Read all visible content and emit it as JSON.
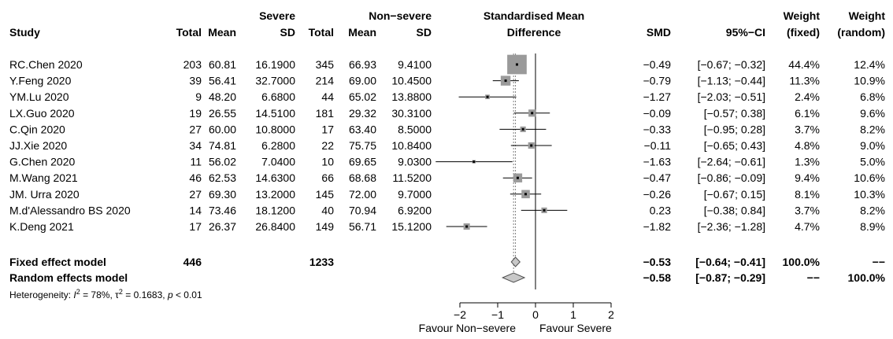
{
  "chart_data": {
    "type": "forest",
    "headers": {
      "study": "Study",
      "severe_group": "Severe",
      "nonsevere_group": "Non−severe",
      "total": "Total",
      "mean": "Mean",
      "sd": "SD",
      "plot_line1": "Standardised Mean",
      "plot_line2": "Difference",
      "smd": "SMD",
      "ci": "95%−CI",
      "weight_fixed_line1": "Weight",
      "weight_fixed_line2": "(fixed)",
      "weight_random_line1": "Weight",
      "weight_random_line2": "(random)"
    },
    "studies": [
      {
        "study": "RC.Chen 2020",
        "s_total": "203",
        "s_mean": "60.81",
        "s_sd": "16.1900",
        "n_total": "345",
        "n_mean": "66.93",
        "n_sd": "9.4100",
        "smd": "−0.49",
        "ci": "[−0.67; −0.32]",
        "w_fixed": "44.4%",
        "w_random": "12.4%",
        "est": -0.49,
        "lo": -0.67,
        "hi": -0.32,
        "wf": 44.4
      },
      {
        "study": "Y.Feng 2020",
        "s_total": "39",
        "s_mean": "56.41",
        "s_sd": "32.7000",
        "n_total": "214",
        "n_mean": "69.00",
        "n_sd": "10.4500",
        "smd": "−0.79",
        "ci": "[−1.13; −0.44]",
        "w_fixed": "11.3%",
        "w_random": "10.9%",
        "est": -0.79,
        "lo": -1.13,
        "hi": -0.44,
        "wf": 11.3
      },
      {
        "study": "YM.Lu 2020",
        "s_total": "9",
        "s_mean": "48.20",
        "s_sd": "6.6800",
        "n_total": "44",
        "n_mean": "65.02",
        "n_sd": "13.8800",
        "smd": "−1.27",
        "ci": "[−2.03; −0.51]",
        "w_fixed": "2.4%",
        "w_random": "6.8%",
        "est": -1.27,
        "lo": -2.03,
        "hi": -0.51,
        "wf": 2.4
      },
      {
        "study": "LX.Guo 2020",
        "s_total": "19",
        "s_mean": "26.55",
        "s_sd": "14.5100",
        "n_total": "181",
        "n_mean": "29.32",
        "n_sd": "30.3100",
        "smd": "−0.09",
        "ci": "[−0.57; 0.38]",
        "w_fixed": "6.1%",
        "w_random": "9.6%",
        "est": -0.09,
        "lo": -0.57,
        "hi": 0.38,
        "wf": 6.1
      },
      {
        "study": "C.Qin 2020",
        "s_total": "27",
        "s_mean": "60.00",
        "s_sd": "10.8000",
        "n_total": "17",
        "n_mean": "63.40",
        "n_sd": "8.5000",
        "smd": "−0.33",
        "ci": "[−0.95; 0.28]",
        "w_fixed": "3.7%",
        "w_random": "8.2%",
        "est": -0.33,
        "lo": -0.95,
        "hi": 0.28,
        "wf": 3.7
      },
      {
        "study": "JJ.Xie 2020",
        "s_total": "34",
        "s_mean": "74.81",
        "s_sd": "6.2800",
        "n_total": "22",
        "n_mean": "75.75",
        "n_sd": "10.8400",
        "smd": "−0.11",
        "ci": "[−0.65; 0.43]",
        "w_fixed": "4.8%",
        "w_random": "9.0%",
        "est": -0.11,
        "lo": -0.65,
        "hi": 0.43,
        "wf": 4.8
      },
      {
        "study": "G.Chen 2020",
        "s_total": "11",
        "s_mean": "56.02",
        "s_sd": "7.0400",
        "n_total": "10",
        "n_mean": "69.65",
        "n_sd": "9.0300",
        "smd": "−1.63",
        "ci": "[−2.64; −0.61]",
        "w_fixed": "1.3%",
        "w_random": "5.0%",
        "est": -1.63,
        "lo": -2.64,
        "hi": -0.61,
        "wf": 1.3
      },
      {
        "study": "M.Wang 2021",
        "s_total": "46",
        "s_mean": "62.53",
        "s_sd": "14.6300",
        "n_total": "66",
        "n_mean": "68.68",
        "n_sd": "11.5200",
        "smd": "−0.47",
        "ci": "[−0.86; −0.09]",
        "w_fixed": "9.4%",
        "w_random": "10.6%",
        "est": -0.47,
        "lo": -0.86,
        "hi": -0.09,
        "wf": 9.4
      },
      {
        "study": "JM. Urra 2020",
        "s_total": "27",
        "s_mean": "69.30",
        "s_sd": "13.2000",
        "n_total": "145",
        "n_mean": "72.00",
        "n_sd": "9.7000",
        "smd": "−0.26",
        "ci": "[−0.67; 0.15]",
        "w_fixed": "8.1%",
        "w_random": "10.3%",
        "est": -0.26,
        "lo": -0.67,
        "hi": 0.15,
        "wf": 8.1
      },
      {
        "study": "M.d'Alessandro BS 2020",
        "s_total": "14",
        "s_mean": "73.46",
        "s_sd": "18.1200",
        "n_total": "40",
        "n_mean": "70.94",
        "n_sd": "6.9200",
        "smd": "0.23",
        "ci": "[−0.38; 0.84]",
        "w_fixed": "3.7%",
        "w_random": "8.2%",
        "est": 0.23,
        "lo": -0.38,
        "hi": 0.84,
        "wf": 3.7
      },
      {
        "study": "K.Deng 2021",
        "s_total": "17",
        "s_mean": "26.37",
        "s_sd": "26.8400",
        "n_total": "149",
        "n_mean": "56.71",
        "n_sd": "15.1200",
        "smd": "−1.82",
        "ci": "[−2.36; −1.28]",
        "w_fixed": "4.7%",
        "w_random": "8.9%",
        "est": -1.82,
        "lo": -2.36,
        "hi": -1.28,
        "wf": 4.7
      }
    ],
    "fixed_model": {
      "label": "Fixed effect model",
      "s_total": "446",
      "n_total": "1233",
      "smd": "−0.53",
      "ci": "[−0.64; −0.41]",
      "w_fixed": "100.0%",
      "w_random": "−−",
      "est": -0.53,
      "lo": -0.64,
      "hi": -0.41
    },
    "random_model": {
      "label": "Random effects model",
      "smd": "−0.58",
      "ci": "[−0.87; −0.29]",
      "w_fixed": "−−",
      "w_random": "100.0%",
      "est": -0.58,
      "lo": -0.87,
      "hi": -0.29
    },
    "heterogeneity": {
      "prefix": "Heterogeneity: ",
      "i2_symbol": "I",
      "i2_value": " = 78%, ",
      "tau2_symbol": "τ",
      "tau2_value": " = 0.1683, ",
      "p_symbol": "p",
      "p_value": " < 0.01"
    },
    "x_axis": {
      "min": -2,
      "max": 2,
      "ticks": [
        -2,
        -1,
        0,
        1,
        2
      ],
      "tick_labels": [
        "−2",
        "−1",
        "0",
        "1",
        "2"
      ],
      "label_left": "Favour Non−severe",
      "label_right": "Favour Severe"
    },
    "colors": {
      "box": "#9a9a9a",
      "line": "#000000",
      "diamond_fill": "#c8c8c8",
      "dotted_line": "#808080"
    }
  }
}
